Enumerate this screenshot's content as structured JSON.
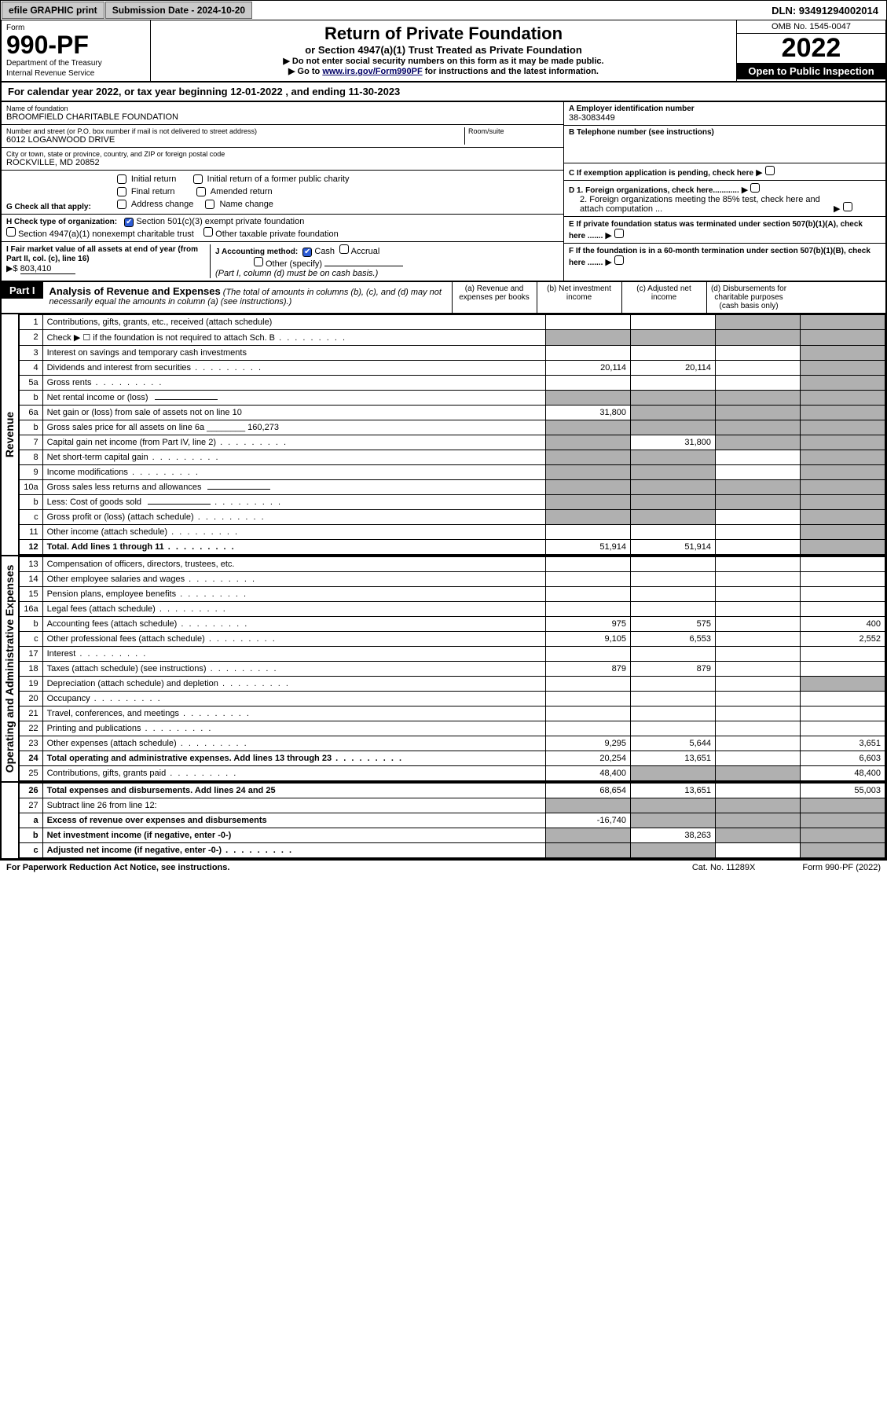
{
  "topbar": {
    "efile_btn": "efile GRAPHIC print",
    "sub_date_label": "Submission Date - 2024-10-20",
    "dln": "DLN: 93491294002014"
  },
  "header": {
    "form_label": "Form",
    "form_num": "990-PF",
    "dept1": "Department of the Treasury",
    "dept2": "Internal Revenue Service",
    "title": "Return of Private Foundation",
    "sub": "or Section 4947(a)(1) Trust Treated as Private Foundation",
    "note1": "▶ Do not enter social security numbers on this form as it may be made public.",
    "note2_a": "▶ Go to ",
    "note2_link": "www.irs.gov/Form990PF",
    "note2_b": " for instructions and the latest information.",
    "omb": "OMB No. 1545-0047",
    "year": "2022",
    "open_pub": "Open to Public Inspection"
  },
  "calyear": "For calendar year 2022, or tax year beginning 12-01-2022              , and ending 11-30-2023",
  "info": {
    "name_lbl": "Name of foundation",
    "name_val": "BROOMFIELD CHARITABLE FOUNDATION",
    "addr_lbl": "Number and street (or P.O. box number if mail is not delivered to street address)",
    "addr_val": "6012 LOGANWOOD DRIVE",
    "room_lbl": "Room/suite",
    "city_lbl": "City or town, state or province, country, and ZIP or foreign postal code",
    "city_val": "ROCKVILLE, MD  20852",
    "a_lbl": "A Employer identification number",
    "a_val": "38-3083449",
    "b_lbl": "B Telephone number (see instructions)",
    "c_lbl": "C If exemption application is pending, check here",
    "d1_lbl": "D 1. Foreign organizations, check here............",
    "d2_lbl": "2. Foreign organizations meeting the 85% test, check here and attach computation ...",
    "e_lbl": "E  If private foundation status was terminated under section 507(b)(1)(A), check here .......",
    "f_lbl": "F  If the foundation is in a 60-month termination under section 507(b)(1)(B), check here ......."
  },
  "sectG": {
    "lbl": "G Check all that apply:",
    "opts": [
      "Initial return",
      "Initial return of a former public charity",
      "Final return",
      "Amended return",
      "Address change",
      "Name change"
    ]
  },
  "sectH": {
    "lbl": "H Check type of organization:",
    "opt1": "Section 501(c)(3) exempt private foundation",
    "opt2": "Section 4947(a)(1) nonexempt charitable trust",
    "opt3": "Other taxable private foundation"
  },
  "sectI": {
    "lbl": "I Fair market value of all assets at end of year (from Part II, col. (c), line 16)",
    "arrow": "▶$",
    "val": "803,410"
  },
  "sectJ": {
    "lbl": "J Accounting method:",
    "cash": "Cash",
    "accrual": "Accrual",
    "other": "Other (specify)",
    "note": "(Part I, column (d) must be on cash basis.)"
  },
  "part1": {
    "label": "Part I",
    "title": "Analysis of Revenue and Expenses",
    "ital": "(The total of amounts in columns (b), (c), and (d) may not necessarily equal the amounts in column (a) (see instructions).)",
    "col_a": "(a)   Revenue and expenses per books",
    "col_b": "(b)   Net investment income",
    "col_c": "(c)   Adjusted net income",
    "col_d": "(d)  Disbursements for charitable purposes (cash basis only)"
  },
  "side_labels": {
    "rev": "Revenue",
    "exp": "Operating and Administrative Expenses"
  },
  "rows": [
    {
      "n": "1",
      "d": "Contributions, gifts, grants, etc., received (attach schedule)",
      "a": "",
      "b": "",
      "c": "s",
      "dd": "s"
    },
    {
      "n": "2",
      "d": "Check ▶ ☐ if the foundation is not required to attach Sch. B",
      "dots": true,
      "a": "s",
      "b": "s",
      "c": "s",
      "dd": "s"
    },
    {
      "n": "3",
      "d": "Interest on savings and temporary cash investments",
      "a": "",
      "b": "",
      "c": "",
      "dd": "s"
    },
    {
      "n": "4",
      "d": "Dividends and interest from securities",
      "dots": true,
      "a": "20,114",
      "b": "20,114",
      "c": "",
      "dd": "s"
    },
    {
      "n": "5a",
      "d": "Gross rents",
      "dots": true,
      "a": "",
      "b": "",
      "c": "",
      "dd": "s"
    },
    {
      "n": "b",
      "d": "Net rental income or (loss)",
      "inline": true,
      "a": "s",
      "b": "s",
      "c": "s",
      "dd": "s"
    },
    {
      "n": "6a",
      "d": "Net gain or (loss) from sale of assets not on line 10",
      "a": "31,800",
      "b": "s",
      "c": "s",
      "dd": "s"
    },
    {
      "n": "b",
      "d": "Gross sales price for all assets on line 6a",
      "inlinev": "160,273",
      "a": "s",
      "b": "s",
      "c": "s",
      "dd": "s"
    },
    {
      "n": "7",
      "d": "Capital gain net income (from Part IV, line 2)",
      "dots": true,
      "a": "s",
      "b": "31,800",
      "c": "s",
      "dd": "s"
    },
    {
      "n": "8",
      "d": "Net short-term capital gain",
      "dots": true,
      "a": "s",
      "b": "s",
      "c": "",
      "dd": "s"
    },
    {
      "n": "9",
      "d": "Income modifications",
      "dots": true,
      "a": "s",
      "b": "s",
      "c": "",
      "dd": "s"
    },
    {
      "n": "10a",
      "d": "Gross sales less returns and allowances",
      "inline": true,
      "a": "s",
      "b": "s",
      "c": "s",
      "dd": "s"
    },
    {
      "n": "b",
      "d": "Less: Cost of goods sold",
      "dots": true,
      "inline": true,
      "a": "s",
      "b": "s",
      "c": "s",
      "dd": "s"
    },
    {
      "n": "c",
      "d": "Gross profit or (loss) (attach schedule)",
      "dots": true,
      "a": "s",
      "b": "s",
      "c": "",
      "dd": "s"
    },
    {
      "n": "11",
      "d": "Other income (attach schedule)",
      "dots": true,
      "a": "",
      "b": "",
      "c": "",
      "dd": "s"
    },
    {
      "n": "12",
      "d": "Total. Add lines 1 through 11",
      "dots": true,
      "bold": true,
      "a": "51,914",
      "b": "51,914",
      "c": "",
      "dd": "s"
    },
    {
      "n": "13",
      "d": "Compensation of officers, directors, trustees, etc.",
      "a": "",
      "b": "",
      "c": "",
      "dd": ""
    },
    {
      "n": "14",
      "d": "Other employee salaries and wages",
      "dots": true,
      "a": "",
      "b": "",
      "c": "",
      "dd": ""
    },
    {
      "n": "15",
      "d": "Pension plans, employee benefits",
      "dots": true,
      "a": "",
      "b": "",
      "c": "",
      "dd": ""
    },
    {
      "n": "16a",
      "d": "Legal fees (attach schedule)",
      "dots": true,
      "a": "",
      "b": "",
      "c": "",
      "dd": ""
    },
    {
      "n": "b",
      "d": "Accounting fees (attach schedule)",
      "dots": true,
      "a": "975",
      "b": "575",
      "c": "",
      "dd": "400"
    },
    {
      "n": "c",
      "d": "Other professional fees (attach schedule)",
      "dots": true,
      "a": "9,105",
      "b": "6,553",
      "c": "",
      "dd": "2,552"
    },
    {
      "n": "17",
      "d": "Interest",
      "dots": true,
      "a": "",
      "b": "",
      "c": "",
      "dd": ""
    },
    {
      "n": "18",
      "d": "Taxes (attach schedule) (see instructions)",
      "dots": true,
      "a": "879",
      "b": "879",
      "c": "",
      "dd": ""
    },
    {
      "n": "19",
      "d": "Depreciation (attach schedule) and depletion",
      "dots": true,
      "a": "",
      "b": "",
      "c": "",
      "dd": "s"
    },
    {
      "n": "20",
      "d": "Occupancy",
      "dots": true,
      "a": "",
      "b": "",
      "c": "",
      "dd": ""
    },
    {
      "n": "21",
      "d": "Travel, conferences, and meetings",
      "dots": true,
      "a": "",
      "b": "",
      "c": "",
      "dd": ""
    },
    {
      "n": "22",
      "d": "Printing and publications",
      "dots": true,
      "a": "",
      "b": "",
      "c": "",
      "dd": ""
    },
    {
      "n": "23",
      "d": "Other expenses (attach schedule)",
      "dots": true,
      "a": "9,295",
      "b": "5,644",
      "c": "",
      "dd": "3,651"
    },
    {
      "n": "24",
      "d": "Total operating and administrative expenses. Add lines 13 through 23",
      "dots": true,
      "bold": true,
      "a": "20,254",
      "b": "13,651",
      "c": "",
      "dd": "6,603"
    },
    {
      "n": "25",
      "d": "Contributions, gifts, grants paid",
      "dots": true,
      "a": "48,400",
      "b": "s",
      "c": "s",
      "dd": "48,400"
    },
    {
      "n": "26",
      "d": "Total expenses and disbursements. Add lines 24 and 25",
      "bold": true,
      "a": "68,654",
      "b": "13,651",
      "c": "",
      "dd": "55,003"
    },
    {
      "n": "27",
      "d": "Subtract line 26 from line 12:",
      "a": "s",
      "b": "s",
      "c": "s",
      "dd": "s"
    },
    {
      "n": "a",
      "d": "Excess of revenue over expenses and disbursements",
      "bold": true,
      "a": "-16,740",
      "b": "s",
      "c": "s",
      "dd": "s"
    },
    {
      "n": "b",
      "d": "Net investment income (if negative, enter -0-)",
      "bold": true,
      "a": "s",
      "b": "38,263",
      "c": "s",
      "dd": "s"
    },
    {
      "n": "c",
      "d": "Adjusted net income (if negative, enter -0-)",
      "dots": true,
      "bold": true,
      "a": "s",
      "b": "s",
      "c": "",
      "dd": "s"
    }
  ],
  "footer": {
    "l": "For Paperwork Reduction Act Notice, see instructions.",
    "c": "Cat. No. 11289X",
    "r": "Form 990-PF (2022)"
  }
}
